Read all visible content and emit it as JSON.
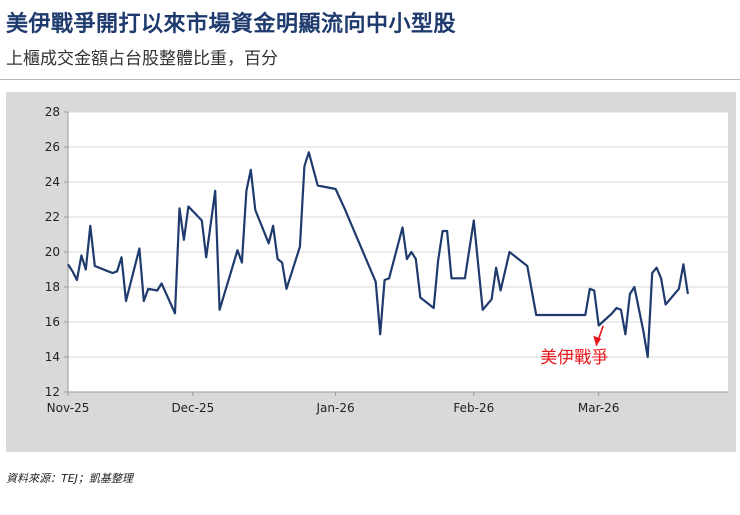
{
  "header": {
    "title": "美伊戰爭開打以來市場資金明顯流向中小型股",
    "subtitle": "上櫃成交金額占台股整體比重，百分"
  },
  "source": "資料來源：TEJ；凱基整理",
  "colors": {
    "line": "#1f3b6e",
    "annotation": "#e8161b",
    "panel": "#d9d9d9",
    "grid": "#d9d9d9"
  },
  "chart_data": {
    "type": "line",
    "title": "美伊戰爭開打以來市場資金明顯流向中小型股",
    "subtitle": "上櫃成交金額占台股整體比重，百分",
    "xlabel": "",
    "ylabel": "",
    "ylim": [
      12,
      28
    ],
    "yticks": [
      12,
      14,
      16,
      18,
      20,
      22,
      24,
      26,
      28
    ],
    "xlim": [
      "2025-11-03",
      "2026-03-31"
    ],
    "xticks": [
      {
        "date": "2025-11-03",
        "label": "Nov-25"
      },
      {
        "date": "2025-12-01",
        "label": "Dec-25"
      },
      {
        "date": "2026-01-02",
        "label": "Jan-26"
      },
      {
        "date": "2026-02-02",
        "label": "Feb-26"
      },
      {
        "date": "2026-03-02",
        "label": "Mar-26"
      }
    ],
    "grid": true,
    "legend": "none",
    "series": [
      {
        "name": "",
        "color": "#1f3b6e",
        "points": [
          [
            "2025-11-03",
            19.3
          ],
          [
            "2025-11-04",
            18.9
          ],
          [
            "2025-11-05",
            18.4
          ],
          [
            "2025-11-06",
            19.8
          ],
          [
            "2025-11-07",
            19.0
          ],
          [
            "2025-11-08",
            21.5
          ],
          [
            "2025-11-09",
            19.2
          ],
          [
            "2025-11-12",
            18.9
          ],
          [
            "2025-11-13",
            18.8
          ],
          [
            "2025-11-14",
            18.9
          ],
          [
            "2025-11-15",
            19.7
          ],
          [
            "2025-11-16",
            17.2
          ],
          [
            "2025-11-19",
            20.2
          ],
          [
            "2025-11-20",
            17.2
          ],
          [
            "2025-11-21",
            17.9
          ],
          [
            "2025-11-23",
            17.8
          ],
          [
            "2025-11-24",
            18.2
          ],
          [
            "2025-11-27",
            16.5
          ],
          [
            "2025-11-28",
            22.5
          ],
          [
            "2025-11-29",
            20.7
          ],
          [
            "2025-11-30",
            22.6
          ],
          [
            "2025-12-03",
            21.8
          ],
          [
            "2025-12-04",
            19.7
          ],
          [
            "2025-12-06",
            23.5
          ],
          [
            "2025-12-07",
            16.7
          ],
          [
            "2025-12-11",
            20.1
          ],
          [
            "2025-12-12",
            19.4
          ],
          [
            "2025-12-13",
            23.5
          ],
          [
            "2025-12-14",
            24.7
          ],
          [
            "2025-12-15",
            22.4
          ],
          [
            "2025-12-18",
            20.5
          ],
          [
            "2025-12-19",
            21.5
          ],
          [
            "2025-12-20",
            19.6
          ],
          [
            "2025-12-21",
            19.4
          ],
          [
            "2025-12-22",
            17.9
          ],
          [
            "2025-12-25",
            20.3
          ],
          [
            "2025-12-26",
            24.9
          ],
          [
            "2025-12-27",
            25.7
          ],
          [
            "2025-12-29",
            23.8
          ],
          [
            "2026-01-02",
            23.6
          ],
          [
            "2026-01-04",
            22.5
          ],
          [
            "2026-01-11",
            18.3
          ],
          [
            "2026-01-12",
            15.3
          ],
          [
            "2026-01-13",
            18.4
          ],
          [
            "2026-01-14",
            18.5
          ],
          [
            "2026-01-17",
            21.4
          ],
          [
            "2026-01-18",
            19.6
          ],
          [
            "2026-01-19",
            20.0
          ],
          [
            "2026-01-20",
            19.6
          ],
          [
            "2026-01-21",
            17.4
          ],
          [
            "2026-01-24",
            16.8
          ],
          [
            "2026-01-25",
            19.5
          ],
          [
            "2026-01-26",
            21.2
          ],
          [
            "2026-01-27",
            21.2
          ],
          [
            "2026-01-28",
            18.5
          ],
          [
            "2026-01-31",
            18.5
          ],
          [
            "2026-02-02",
            21.8
          ],
          [
            "2026-02-04",
            16.7
          ],
          [
            "2026-02-06",
            17.3
          ],
          [
            "2026-02-07",
            19.1
          ],
          [
            "2026-02-08",
            17.8
          ],
          [
            "2026-02-10",
            20.0
          ],
          [
            "2026-02-12",
            19.6
          ],
          [
            "2026-02-14",
            19.2
          ],
          [
            "2026-02-16",
            16.4
          ],
          [
            "2026-02-27",
            16.4
          ],
          [
            "2026-02-28",
            17.9
          ],
          [
            "2026-03-01",
            17.8
          ],
          [
            "2026-03-02",
            15.8
          ],
          [
            "2026-03-05",
            16.5
          ],
          [
            "2026-03-06",
            16.8
          ],
          [
            "2026-03-07",
            16.7
          ],
          [
            "2026-03-08",
            15.3
          ],
          [
            "2026-03-09",
            17.6
          ],
          [
            "2026-03-10",
            18.0
          ],
          [
            "2026-03-12",
            15.5
          ],
          [
            "2026-03-13",
            14.0
          ],
          [
            "2026-03-14",
            18.8
          ],
          [
            "2026-03-15",
            19.1
          ],
          [
            "2026-03-16",
            18.5
          ],
          [
            "2026-03-17",
            17.0
          ],
          [
            "2026-03-20",
            17.9
          ],
          [
            "2026-03-21",
            19.3
          ],
          [
            "2026-03-22",
            17.6
          ]
        ]
      }
    ],
    "annotations": [
      {
        "text": "美伊戰爭",
        "arrow_to": {
          "date": "2026-03-01",
          "value": 15.5
        },
        "color": "#e8161b"
      }
    ]
  }
}
